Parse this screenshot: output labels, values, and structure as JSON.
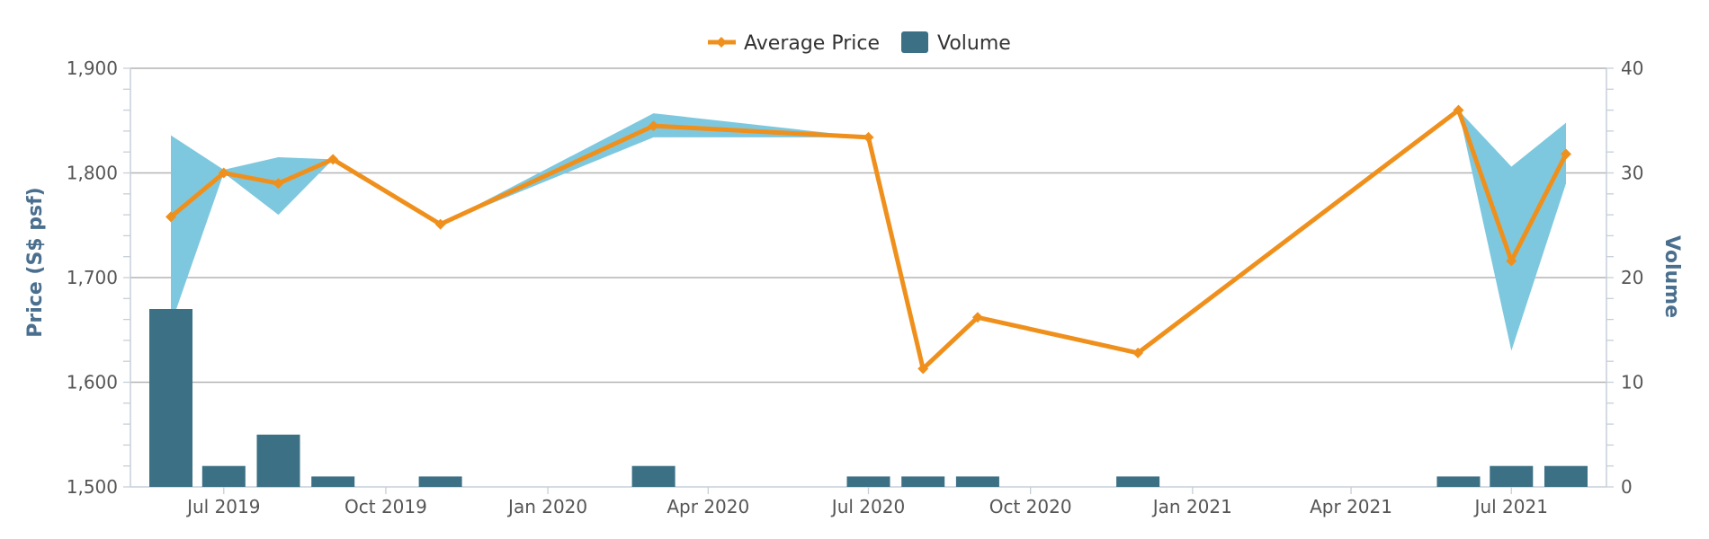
{
  "chart_data": {
    "type": "line+bar",
    "xlabel": "",
    "x_ticks": [
      "Jul 2019",
      "Oct 2019",
      "Jan 2020",
      "Apr 2020",
      "Jul 2020",
      "Oct 2020",
      "Jan 2021",
      "Apr 2021",
      "Jul 2021"
    ],
    "x_range": [
      "2019-05-09",
      "2021-08-24"
    ],
    "y_left": {
      "label": "Price (S$ psf)",
      "range": [
        1500,
        1900
      ],
      "ticks": [
        "1,500",
        "1,600",
        "1,700",
        "1,800",
        "1,900"
      ]
    },
    "y_right": {
      "label": "Volume",
      "range": [
        0,
        40
      ],
      "ticks": [
        "0",
        "10",
        "20",
        "30",
        "40"
      ]
    },
    "grid": true,
    "legend": {
      "placement": "top-center",
      "items": [
        {
          "label": "Average Price",
          "color": "#f0901c",
          "kind": "line"
        },
        {
          "label": "Volume",
          "color": "#3b7085",
          "kind": "bar"
        }
      ]
    },
    "series": [
      {
        "name": "Average Price",
        "kind": "line",
        "axis": "left",
        "color": "#f0901c",
        "x": [
          "2019-06-01",
          "2019-07-01",
          "2019-08-01",
          "2019-09-01",
          "2019-11-01",
          "2020-03-01",
          "2020-07-01",
          "2020-08-01",
          "2020-09-01",
          "2020-12-01",
          "2021-06-01",
          "2021-07-01",
          "2021-08-01"
        ],
        "values": [
          1758,
          1800,
          1790,
          1813,
          1751,
          1845,
          1834,
          1613,
          1662,
          1628,
          1860,
          1716,
          1818
        ]
      },
      {
        "name": "Price range",
        "kind": "area-range",
        "axis": "left",
        "color": "#7ec8df",
        "x": [
          "2019-06-01",
          "2019-07-01",
          "2019-08-01",
          "2019-09-01",
          "2019-11-01",
          "2020-03-01",
          "2020-07-01",
          "2020-08-01",
          "2020-09-01",
          "2020-12-01",
          "2021-06-01",
          "2021-07-01",
          "2021-08-01"
        ],
        "low": [
          1655,
          1800,
          1760,
          1813,
          1751,
          1834,
          1834,
          1613,
          1662,
          1628,
          1860,
          1630,
          1790
        ],
        "high": [
          1836,
          1803,
          1815,
          1813,
          1751,
          1857,
          1834,
          1613,
          1662,
          1628,
          1860,
          1806,
          1848
        ]
      },
      {
        "name": "Volume",
        "kind": "bar",
        "axis": "right",
        "color": "#3b7085",
        "x": [
          "2019-06-01",
          "2019-07-01",
          "2019-08-01",
          "2019-09-01",
          "2019-11-01",
          "2020-03-01",
          "2020-07-01",
          "2020-08-01",
          "2020-09-01",
          "2020-12-01",
          "2021-06-01",
          "2021-07-01",
          "2021-08-01"
        ],
        "values": [
          17,
          2,
          5,
          1,
          1,
          2,
          1,
          1,
          1,
          1,
          1,
          2,
          2
        ]
      }
    ]
  }
}
